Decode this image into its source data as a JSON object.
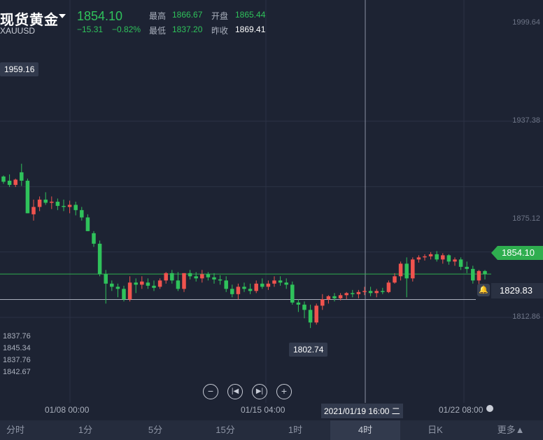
{
  "header": {
    "title": "现货黄金",
    "symbol": "XAUUSD",
    "price": "1854.10",
    "change": "−15.31",
    "change_pct": "−0.82%",
    "stats": {
      "high_label": "最高",
      "high": "1866.67",
      "open_label": "开盘",
      "open": "1865.44",
      "low_label": "最低",
      "low": "1837.20",
      "prev_label": "昨收",
      "prev_close": "1869.41"
    }
  },
  "markers": {
    "max_tag": "1959.16",
    "min_tag": "1802.74",
    "last_price": "1854.10",
    "alert_price": "1829.83"
  },
  "side_values": [
    "1837.76",
    "1845.34",
    "1837.76",
    "1842.67"
  ],
  "selected_date": "2021/01/19 16:00 二",
  "tabs": [
    "分时",
    "1分",
    "5分",
    "15分",
    "1时",
    "4时",
    "日K",
    "更多▲"
  ],
  "active_tab": "4时",
  "colors": {
    "up": "#f0534e",
    "down": "#2fc25b",
    "background": "#1d2333"
  },
  "chart_data": {
    "type": "candlestick",
    "y_ticks": [
      "1999.64",
      "1937.38",
      "1875.12",
      "1812.86"
    ],
    "x_ticks": [
      "01/08 00:00",
      "01/15 04:00",
      "01/22 08:00"
    ],
    "candles": [
      [
        1947,
        1948,
        1940,
        1942
      ],
      [
        1943,
        1949,
        1937,
        1939
      ],
      [
        1939,
        1945,
        1937,
        1944
      ],
      [
        1951,
        1959.16,
        1938,
        1943
      ],
      [
        1943,
        1945,
        1912,
        1912
      ],
      [
        1911,
        1925,
        1905,
        1918
      ],
      [
        1918,
        1928,
        1914,
        1925
      ],
      [
        1925,
        1932,
        1920,
        1922
      ],
      [
        1922,
        1928,
        1916,
        1923
      ],
      [
        1923,
        1926,
        1915,
        1919
      ],
      [
        1919,
        1925,
        1914,
        1918
      ],
      [
        1918,
        1924,
        1912,
        1920
      ],
      [
        1920,
        1923,
        1910,
        1915
      ],
      [
        1915,
        1918,
        1905,
        1908
      ],
      [
        1908,
        1911,
        1895,
        1895
      ],
      [
        1893,
        1895,
        1880,
        1883
      ],
      [
        1883,
        1886,
        1852,
        1854
      ],
      [
        1854,
        1858,
        1826,
        1845
      ],
      [
        1845,
        1848,
        1838,
        1842
      ],
      [
        1842,
        1845,
        1832,
        1840
      ],
      [
        1840,
        1843,
        1828,
        1830
      ],
      [
        1830,
        1852,
        1828,
        1846
      ],
      [
        1846,
        1850,
        1836,
        1844
      ],
      [
        1844,
        1852,
        1840,
        1847
      ],
      [
        1846,
        1850,
        1840,
        1843
      ],
      [
        1843,
        1848,
        1838,
        1841
      ],
      [
        1842,
        1850,
        1840,
        1848
      ],
      [
        1848,
        1856,
        1845,
        1855
      ],
      [
        1855,
        1858,
        1845,
        1848
      ],
      [
        1848,
        1856,
        1838,
        1840
      ],
      [
        1840,
        1855,
        1837,
        1855
      ],
      [
        1855,
        1858,
        1849,
        1852
      ],
      [
        1852,
        1856,
        1847,
        1850
      ],
      [
        1850,
        1858,
        1846,
        1854
      ],
      [
        1854,
        1856,
        1848,
        1851
      ],
      [
        1851,
        1855,
        1845,
        1849
      ],
      [
        1849,
        1853,
        1844,
        1848
      ],
      [
        1848,
        1852,
        1837,
        1840
      ],
      [
        1840,
        1844,
        1832,
        1835
      ],
      [
        1835,
        1845,
        1830,
        1842
      ],
      [
        1842,
        1846,
        1837,
        1840
      ],
      [
        1840,
        1845,
        1835,
        1838
      ],
      [
        1838,
        1848,
        1836,
        1845
      ],
      [
        1845,
        1850,
        1840,
        1842
      ],
      [
        1842,
        1848,
        1839,
        1845
      ],
      [
        1845,
        1852,
        1842,
        1848
      ],
      [
        1848,
        1852,
        1843,
        1846
      ],
      [
        1846,
        1850,
        1840,
        1844
      ],
      [
        1844,
        1847,
        1825,
        1827
      ],
      [
        1827,
        1830,
        1818,
        1825
      ],
      [
        1825,
        1828,
        1812,
        1820
      ],
      [
        1820,
        1825,
        1802.74,
        1808
      ],
      [
        1808,
        1826,
        1806,
        1824
      ],
      [
        1824,
        1835,
        1820,
        1830
      ],
      [
        1830,
        1834,
        1826,
        1833
      ],
      [
        1833,
        1836,
        1828,
        1831
      ],
      [
        1831,
        1836,
        1829,
        1834
      ],
      [
        1834,
        1837,
        1830,
        1836
      ],
      [
        1836,
        1839,
        1832,
        1835
      ],
      [
        1835,
        1839,
        1831,
        1837
      ],
      [
        1837,
        1842,
        1834,
        1838
      ],
      [
        1838,
        1842,
        1833,
        1836
      ],
      [
        1836,
        1840,
        1832,
        1838
      ],
      [
        1838,
        1841,
        1835,
        1837
      ],
      [
        1837,
        1848,
        1836,
        1846
      ],
      [
        1846,
        1855,
        1845,
        1852
      ],
      [
        1852,
        1866,
        1848,
        1864
      ],
      [
        1864,
        1870,
        1832,
        1850
      ],
      [
        1850,
        1870,
        1847,
        1868
      ],
      [
        1868,
        1872,
        1865,
        1870
      ],
      [
        1870,
        1873,
        1867,
        1871
      ],
      [
        1871,
        1875,
        1868,
        1873
      ],
      [
        1873,
        1876,
        1866,
        1868
      ],
      [
        1868,
        1874,
        1864,
        1872
      ],
      [
        1872,
        1873,
        1863,
        1866
      ],
      [
        1866,
        1870,
        1862,
        1868
      ],
      [
        1868,
        1870,
        1858,
        1861
      ],
      [
        1861,
        1866,
        1855,
        1859
      ],
      [
        1859,
        1862,
        1845,
        1848
      ],
      [
        1848,
        1858,
        1837,
        1857
      ],
      [
        1857,
        1858,
        1849,
        1854.1
      ]
    ]
  }
}
